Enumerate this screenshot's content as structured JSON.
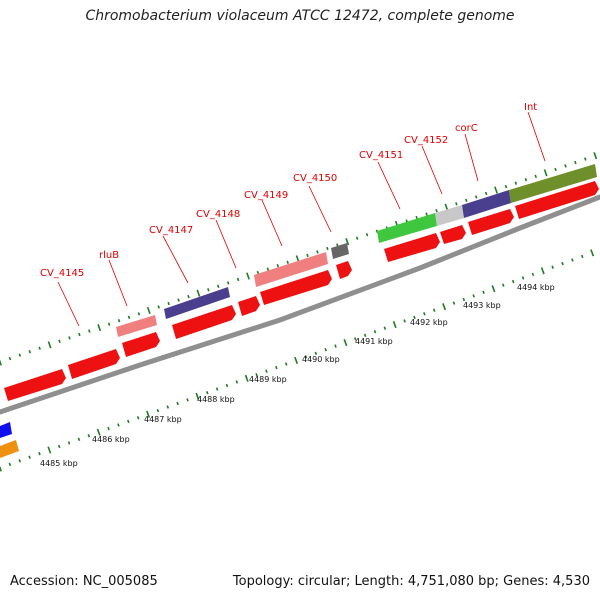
{
  "title": "Chromobacterium violaceum ATCC 12472, complete genome",
  "footer": {
    "accession": "Accession: NC_005085",
    "summary": "Topology: circular; Length: 4,751,080 bp; Genes: 4,530"
  },
  "features": [
    {
      "label": "CV_4145"
    },
    {
      "label": "rluB"
    },
    {
      "label": "CV_4147"
    },
    {
      "label": "CV_4148"
    },
    {
      "label": "CV_4149"
    },
    {
      "label": "CV_4150"
    },
    {
      "label": "CV_4151"
    },
    {
      "label": "CV_4152"
    },
    {
      "label": "corC"
    },
    {
      "label": "Int"
    }
  ],
  "scale_labels": [
    {
      "text": "4485 kbp"
    },
    {
      "text": "4486 kbp"
    },
    {
      "text": "4487 kbp"
    },
    {
      "text": "4488 kbp"
    },
    {
      "text": "4489 kbp"
    },
    {
      "text": "4490 kbp"
    },
    {
      "text": "4491 kbp"
    },
    {
      "text": "4492 kbp"
    },
    {
      "text": "4493 kbp"
    },
    {
      "text": "4494 kbp"
    }
  ],
  "colors": {
    "cds": "#ee1111",
    "rna": "#f08080",
    "hypothetical": "#4a3f8f",
    "backbone": "#8f8f8f",
    "ticks": "#1e7d1e",
    "label": "#e00000",
    "olive": "#6f8f2a",
    "green": "#3fc83f",
    "silver": "#c8c8c8",
    "gray": "#666666",
    "blue": "#1010ee",
    "orange": "#f09010"
  }
}
